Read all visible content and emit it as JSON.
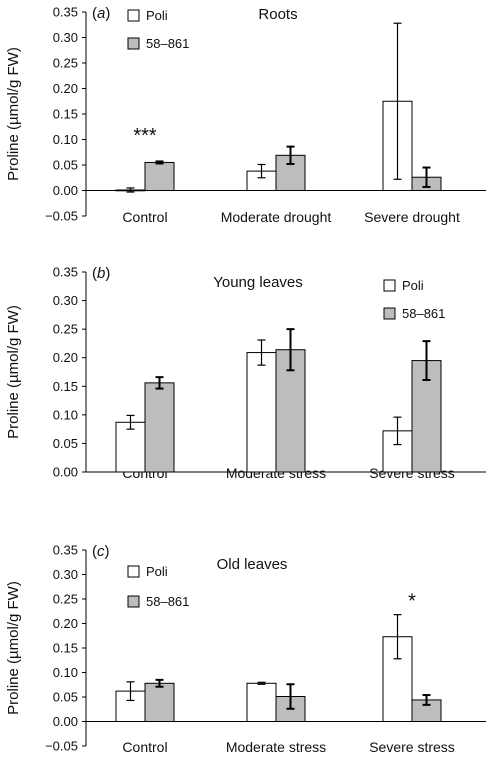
{
  "figure": {
    "ylabel": "Proline (µmol/g FW)"
  },
  "chart_data": [
    {
      "type": "bar",
      "panel_label": "(a)",
      "title": "Roots",
      "ylabel": "Proline (µmol/g FW)",
      "categories": [
        "Control",
        "Moderate drought",
        "Severe drought"
      ],
      "series": [
        {
          "name": "Poli",
          "color": "#ffffff",
          "values": [
            0.001,
            0.038,
            0.175
          ],
          "errors": [
            0.004,
            0.013,
            0.153
          ]
        },
        {
          "name": "58–861",
          "color": "#bdbdbd",
          "values": [
            0.055,
            0.069,
            0.026
          ],
          "errors": [
            0.002,
            0.017,
            0.019
          ]
        }
      ],
      "yticks": [
        "−0.05",
        "0.00",
        "0.05",
        "0.10",
        "0.15",
        "0.20",
        "0.25",
        "0.30",
        "0.35"
      ],
      "ylim": [
        -0.05,
        0.35
      ],
      "legend_position": "top-left",
      "annotations": [
        {
          "text": "***",
          "category": "Control"
        }
      ]
    },
    {
      "type": "bar",
      "panel_label": "(b)",
      "title": "Young leaves",
      "ylabel": "Proline (µmol/g FW)",
      "categories": [
        "Control",
        "Moderate stress",
        "Severe stress"
      ],
      "series": [
        {
          "name": "Poli",
          "color": "#ffffff",
          "values": [
            0.087,
            0.209,
            0.072
          ],
          "errors": [
            0.012,
            0.022,
            0.024
          ]
        },
        {
          "name": "58–861",
          "color": "#bdbdbd",
          "values": [
            0.156,
            0.214,
            0.195
          ],
          "errors": [
            0.01,
            0.036,
            0.034
          ]
        }
      ],
      "yticks": [
        "0.00",
        "0.05",
        "0.10",
        "0.15",
        "0.20",
        "0.25",
        "0.30",
        "0.35"
      ],
      "ylim": [
        0,
        0.35
      ],
      "legend_position": "top-right",
      "annotations": []
    },
    {
      "type": "bar",
      "panel_label": "(c)",
      "title": "Old leaves",
      "ylabel": "Proline (µmol/g FW)",
      "categories": [
        "Control",
        "Moderate stress",
        "Severe stress"
      ],
      "series": [
        {
          "name": "Poli",
          "color": "#ffffff",
          "values": [
            0.062,
            0.078,
            0.173
          ],
          "errors": [
            0.019,
            0.002,
            0.045
          ]
        },
        {
          "name": "58–861",
          "color": "#bdbdbd",
          "values": [
            0.078,
            0.051,
            0.044
          ],
          "errors": [
            0.007,
            0.025,
            0.01
          ]
        }
      ],
      "yticks": [
        "−0.05",
        "0.00",
        "0.05",
        "0.10",
        "0.15",
        "0.20",
        "0.25",
        "0.30",
        "0.35"
      ],
      "ylim": [
        -0.05,
        0.35
      ],
      "legend_position": "top-left",
      "annotations": [
        {
          "text": "*",
          "category": "Severe stress"
        }
      ]
    }
  ]
}
